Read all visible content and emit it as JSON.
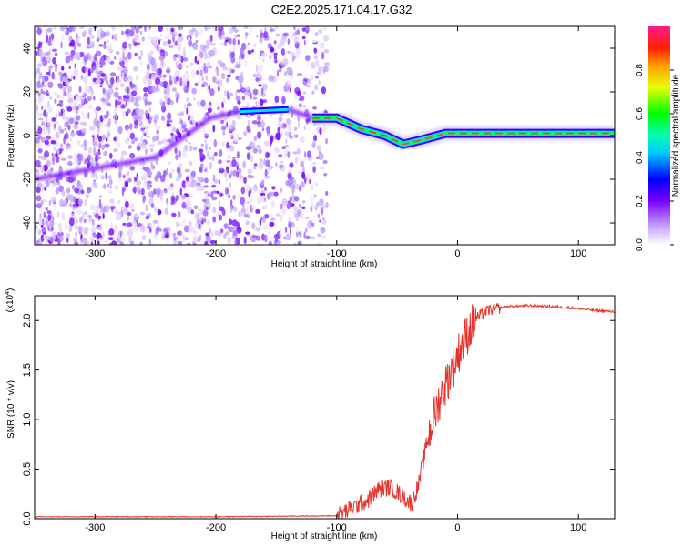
{
  "title": "C2E2.2025.171.04.17.G32",
  "chart_data": [
    {
      "type": "heatmap",
      "xlabel": "Height of straight line (km)",
      "ylabel": "Frequency (Hz)",
      "xlim": [
        -350,
        130
      ],
      "ylim": [
        -50,
        50
      ],
      "x_ticks": [
        -300,
        -200,
        -100,
        0,
        100
      ],
      "y_ticks": [
        -40,
        -20,
        0,
        20,
        40
      ],
      "colorbar": {
        "label": "Normalized spectral amplitude",
        "range": [
          0,
          1
        ],
        "ticks": [
          "0.0",
          "0.2",
          "0.4",
          "0.6",
          "0.8"
        ]
      },
      "ridge": [
        {
          "x": -350,
          "y": -20
        },
        {
          "x": -250,
          "y": -10
        },
        {
          "x": -205,
          "y": 8
        },
        {
          "x": -180,
          "y": 11
        },
        {
          "x": -140,
          "y": 12
        },
        {
          "x": -120,
          "y": 8
        },
        {
          "x": -100,
          "y": 8
        },
        {
          "x": -80,
          "y": 3
        },
        {
          "x": -60,
          "y": 0
        },
        {
          "x": -45,
          "y": -4
        },
        {
          "x": -30,
          "y": -2
        },
        {
          "x": -10,
          "y": 1
        },
        {
          "x": 0,
          "y": 1
        },
        {
          "x": 20,
          "y": 1
        },
        {
          "x": 60,
          "y": 1
        },
        {
          "x": 100,
          "y": 1
        },
        {
          "x": 130,
          "y": 1
        }
      ]
    },
    {
      "type": "line",
      "xlabel": "Height of straight line (km)",
      "ylabel": "SNR (10 * v/v)",
      "multiplier": "(x10",
      "multiplier_exp": "4",
      "xlim": [
        -350,
        130
      ],
      "ylim": [
        0,
        2.25
      ],
      "x_ticks": [
        -300,
        -200,
        -100,
        0,
        100
      ],
      "y_ticks": [
        "0.0",
        "0.5",
        "1.0",
        "1.5",
        "2.0"
      ],
      "color": "#e8332c",
      "series": [
        {
          "x": [
            -350,
            -200,
            -100,
            -95,
            -85,
            -75,
            -65,
            -55,
            -45,
            -38,
            -32,
            -25,
            -15,
            -5,
            5,
            15,
            25,
            40,
            60,
            80,
            100,
            115,
            130
          ],
          "y": [
            0.02,
            0.02,
            0.03,
            0.06,
            0.12,
            0.18,
            0.3,
            0.32,
            0.22,
            0.15,
            0.35,
            0.8,
            1.2,
            1.5,
            1.8,
            2.02,
            2.1,
            2.14,
            2.15,
            2.14,
            2.12,
            2.1,
            2.09
          ]
        }
      ]
    }
  ]
}
